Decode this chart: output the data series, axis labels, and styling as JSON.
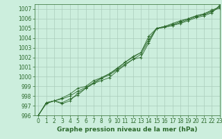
{
  "title": "Graphe pression niveau de la mer (hPa)",
  "x_hours": [
    0,
    1,
    2,
    3,
    4,
    5,
    6,
    7,
    8,
    9,
    10,
    11,
    12,
    13,
    14,
    15,
    16,
    17,
    18,
    19,
    20,
    21,
    22,
    23
  ],
  "lines": [
    [
      996.0,
      997.3,
      997.5,
      997.3,
      997.7,
      998.1,
      998.8,
      999.3,
      999.6,
      999.9,
      1000.6,
      1001.2,
      1001.8,
      1002.0,
      1003.5,
      1005.0,
      1005.1,
      1005.3,
      1005.5,
      1005.8,
      1006.1,
      1006.3,
      1006.6,
      1007.4
    ],
    [
      996.0,
      997.3,
      997.5,
      997.8,
      998.2,
      998.8,
      999.0,
      999.6,
      999.9,
      1000.3,
      1000.8,
      1001.5,
      1002.1,
      1002.5,
      1004.2,
      1005.0,
      1005.2,
      1005.5,
      1005.8,
      1006.0,
      1006.3,
      1006.5,
      1006.9,
      1007.2
    ],
    [
      996.0,
      997.3,
      997.5,
      997.2,
      997.5,
      998.3,
      998.8,
      999.3,
      999.8,
      1000.2,
      1000.7,
      1001.3,
      1001.8,
      1002.3,
      1003.7,
      1005.0,
      1005.1,
      1005.3,
      1005.6,
      1005.9,
      1006.2,
      1006.4,
      1006.7,
      1007.3
    ],
    [
      996.0,
      997.2,
      997.5,
      997.7,
      998.0,
      998.5,
      998.9,
      999.4,
      999.9,
      1000.3,
      1000.9,
      1001.5,
      1002.0,
      1002.5,
      1003.9,
      1005.0,
      1005.2,
      1005.4,
      1005.7,
      1006.0,
      1006.3,
      1006.5,
      1006.8,
      1007.1
    ]
  ],
  "line_color": "#2d6a2d",
  "marker": "+",
  "markersize": 3,
  "linewidth": 0.6,
  "markeredgewidth": 0.7,
  "ylim": [
    996,
    1007.5
  ],
  "yticks": [
    996,
    997,
    998,
    999,
    1000,
    1001,
    1002,
    1003,
    1004,
    1005,
    1006,
    1007
  ],
  "xlim": [
    -0.5,
    23
  ],
  "xticks": [
    0,
    1,
    2,
    3,
    4,
    5,
    6,
    7,
    8,
    9,
    10,
    11,
    12,
    13,
    14,
    15,
    16,
    17,
    18,
    19,
    20,
    21,
    22,
    23
  ],
  "bg_color": "#cceedd",
  "grid_color": "#aaccbb",
  "axis_color": "#2d6a2d",
  "text_color": "#2d6a2d",
  "title_fontsize": 6.5,
  "tick_fontsize": 5.5,
  "ylabel_fontsize": 6
}
